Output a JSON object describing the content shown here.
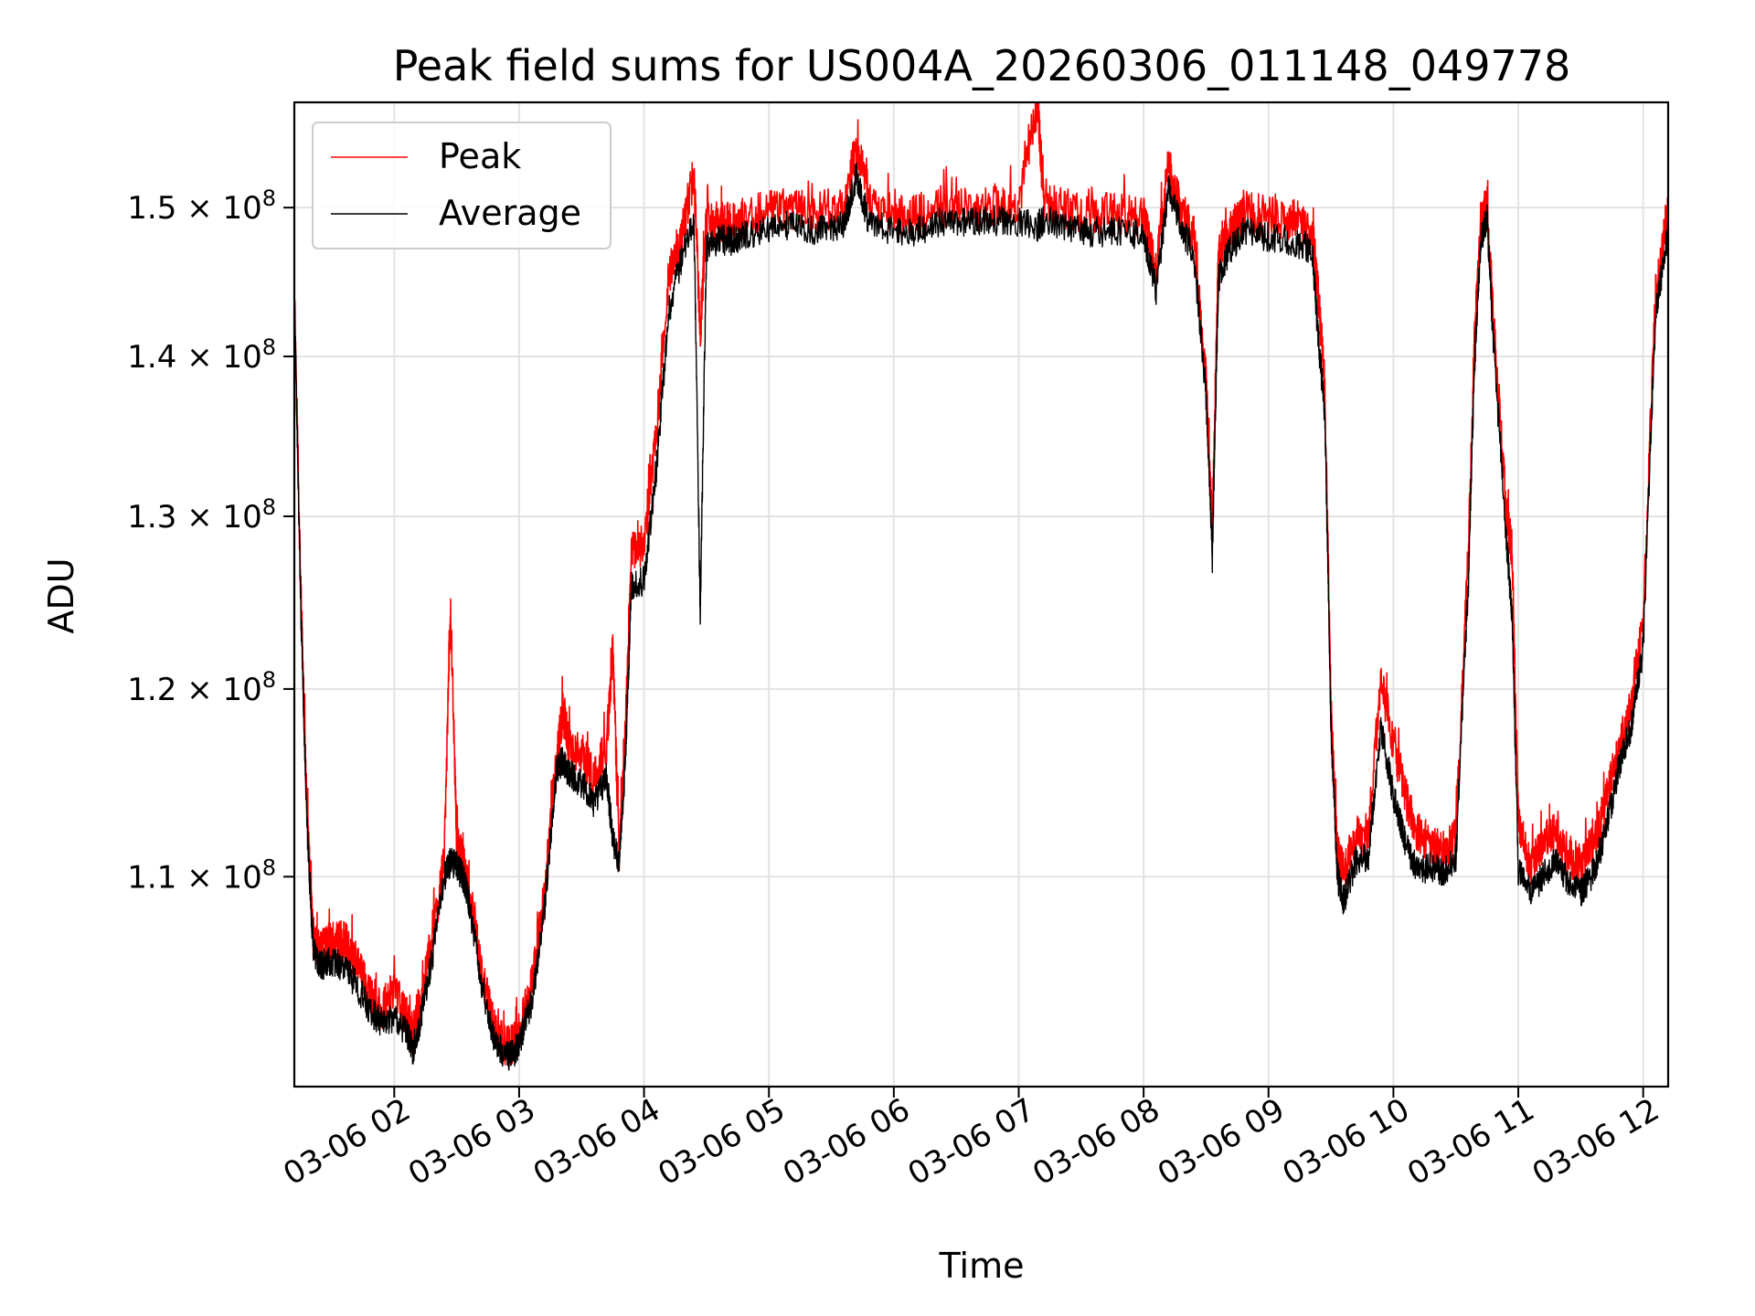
{
  "chart_data": {
    "type": "line",
    "title": "Peak field sums for US004A_20260306_011148_049778",
    "xlabel": "Time",
    "ylabel": "ADU",
    "x_unit": "hour of 2026-03-06",
    "xlim": [
      1.2,
      12.2
    ],
    "ylim": [
      99800000,
      157500000
    ],
    "y_scale": "log",
    "grid": true,
    "legend_position": "top-left",
    "x_ticks": [
      {
        "value": 2,
        "label": "03-06 02"
      },
      {
        "value": 3,
        "label": "03-06 03"
      },
      {
        "value": 4,
        "label": "03-06 04"
      },
      {
        "value": 5,
        "label": "03-06 05"
      },
      {
        "value": 6,
        "label": "03-06 06"
      },
      {
        "value": 7,
        "label": "03-06 07"
      },
      {
        "value": 8,
        "label": "03-06 08"
      },
      {
        "value": 9,
        "label": "03-06 09"
      },
      {
        "value": 10,
        "label": "03-06 10"
      },
      {
        "value": 11,
        "label": "03-06 11"
      },
      {
        "value": 12,
        "label": "03-06 12"
      }
    ],
    "y_ticks": [
      {
        "value": 110000000,
        "mantissa": "1.1",
        "exponent": "8"
      },
      {
        "value": 120000000,
        "mantissa": "1.2",
        "exponent": "8"
      },
      {
        "value": 130000000,
        "mantissa": "1.3",
        "exponent": "8"
      },
      {
        "value": 140000000,
        "mantissa": "1.4",
        "exponent": "8"
      },
      {
        "value": 150000000,
        "mantissa": "1.5",
        "exponent": "8"
      }
    ],
    "series": [
      {
        "name": "Peak",
        "color": "#ff0000",
        "x": [
          1.2,
          1.25,
          1.3,
          1.35,
          1.4,
          1.45,
          1.5,
          1.6,
          1.7,
          1.8,
          1.9,
          2.0,
          2.1,
          2.15,
          2.2,
          2.3,
          2.4,
          2.45,
          2.5,
          2.55,
          2.6,
          2.7,
          2.8,
          2.9,
          2.95,
          3.0,
          3.1,
          3.2,
          3.3,
          3.35,
          3.4,
          3.5,
          3.6,
          3.7,
          3.75,
          3.8,
          3.85,
          3.9,
          4.0,
          4.1,
          4.2,
          4.3,
          4.4,
          4.45,
          4.5,
          4.6,
          4.7,
          4.8,
          5.0,
          5.2,
          5.4,
          5.6,
          5.7,
          5.8,
          6.0,
          6.2,
          6.4,
          6.6,
          6.8,
          7.0,
          7.15,
          7.2,
          7.4,
          7.6,
          7.8,
          8.0,
          8.1,
          8.2,
          8.3,
          8.4,
          8.5,
          8.55,
          8.6,
          8.7,
          8.8,
          9.0,
          9.2,
          9.35,
          9.4,
          9.45,
          9.5,
          9.55,
          9.6,
          9.7,
          9.8,
          9.9,
          10.0,
          10.1,
          10.2,
          10.3,
          10.4,
          10.5,
          10.6,
          10.65,
          10.7,
          10.75,
          10.8,
          10.9,
          10.95,
          11.0,
          11.1,
          11.2,
          11.3,
          11.4,
          11.5,
          11.6,
          11.7,
          11.8,
          11.9,
          12.0,
          12.1,
          12.2
        ],
        "y": [
          144500000,
          126000000,
          113500000,
          107000000,
          106200000,
          106500000,
          106700000,
          106800000,
          105800000,
          104200000,
          103500000,
          104300000,
          103000000,
          102200000,
          103400000,
          106800000,
          110700000,
          124500000,
          111800000,
          110800000,
          109300000,
          105300000,
          102500000,
          101700000,
          101800000,
          102300000,
          104500000,
          108900000,
          116200000,
          118800000,
          116800000,
          116500000,
          115000000,
          116900000,
          122100000,
          111200000,
          117500000,
          128100000,
          128000000,
          135200000,
          145500000,
          148100000,
          152300000,
          141600000,
          149300000,
          149100000,
          148800000,
          149300000,
          149900000,
          150000000,
          149800000,
          150200000,
          154400000,
          150700000,
          149300000,
          149500000,
          150200000,
          149900000,
          150000000,
          150100000,
          157500000,
          150300000,
          149800000,
          149500000,
          149600000,
          149300000,
          145700000,
          153000000,
          149800000,
          148200000,
          138500000,
          129000000,
          146800000,
          148600000,
          149800000,
          149300000,
          149200000,
          148400000,
          144000000,
          138000000,
          118800000,
          111200000,
          110200000,
          112000000,
          112200000,
          120500000,
          117000000,
          114100000,
          112200000,
          111600000,
          111300000,
          111900000,
          127800000,
          141200000,
          149100000,
          150200000,
          142500000,
          130600000,
          127800000,
          113000000,
          110300000,
          111800000,
          112300000,
          111100000,
          110600000,
          111600000,
          113700000,
          116700000,
          119000000,
          123500000,
          144100000,
          149500000
        ]
      },
      {
        "name": "Average",
        "color": "#000000",
        "x": [
          1.2,
          1.25,
          1.3,
          1.35,
          1.4,
          1.45,
          1.5,
          1.6,
          1.7,
          1.8,
          1.9,
          2.0,
          2.1,
          2.15,
          2.2,
          2.3,
          2.4,
          2.45,
          2.5,
          2.55,
          2.6,
          2.7,
          2.8,
          2.9,
          2.95,
          3.0,
          3.1,
          3.2,
          3.3,
          3.35,
          3.4,
          3.5,
          3.6,
          3.7,
          3.75,
          3.8,
          3.85,
          3.9,
          4.0,
          4.1,
          4.2,
          4.3,
          4.4,
          4.45,
          4.5,
          4.6,
          4.7,
          4.8,
          5.0,
          5.2,
          5.4,
          5.6,
          5.7,
          5.8,
          6.0,
          6.2,
          6.4,
          6.6,
          6.8,
          7.0,
          7.15,
          7.2,
          7.4,
          7.6,
          7.8,
          8.0,
          8.1,
          8.2,
          8.3,
          8.4,
          8.5,
          8.55,
          8.6,
          8.7,
          8.8,
          9.0,
          9.2,
          9.35,
          9.4,
          9.45,
          9.5,
          9.55,
          9.6,
          9.7,
          9.8,
          9.9,
          10.0,
          10.1,
          10.2,
          10.3,
          10.4,
          10.5,
          10.6,
          10.65,
          10.7,
          10.75,
          10.8,
          10.9,
          10.95,
          11.0,
          11.1,
          11.2,
          11.3,
          11.4,
          11.5,
          11.6,
          11.7,
          11.8,
          11.9,
          12.0,
          12.1,
          12.2
        ],
        "y": [
          143800000,
          125000000,
          112800000,
          106500000,
          105500000,
          105700000,
          105800000,
          105500000,
          104600000,
          103400000,
          102800000,
          103100000,
          102300000,
          101500000,
          102700000,
          105800000,
          110000000,
          110800000,
          110500000,
          110000000,
          108700000,
          104700000,
          102000000,
          101200000,
          101300000,
          101800000,
          103800000,
          108200000,
          115600000,
          116100000,
          115400000,
          114900000,
          113800000,
          115200000,
          112000000,
          110500000,
          116000000,
          125800000,
          126200000,
          133000000,
          143000000,
          146500000,
          149000000,
          124000000,
          147200000,
          147800000,
          147700000,
          148100000,
          148500000,
          148800000,
          148400000,
          148800000,
          152300000,
          149000000,
          148300000,
          148400000,
          149100000,
          149000000,
          149100000,
          149000000,
          148700000,
          149200000,
          148500000,
          148300000,
          148400000,
          148100000,
          144300000,
          151500000,
          148600000,
          147000000,
          137500000,
          127500000,
          145200000,
          147200000,
          148400000,
          148000000,
          147700000,
          147100000,
          141000000,
          136500000,
          118000000,
          110100000,
          108700000,
          110800000,
          111100000,
          117800000,
          114200000,
          111600000,
          110200000,
          110500000,
          110300000,
          110900000,
          126000000,
          139600000,
          147700000,
          149300000,
          141000000,
          129000000,
          124200000,
          110300000,
          109100000,
          110100000,
          110900000,
          109800000,
          109200000,
          110200000,
          112300000,
          115600000,
          117800000,
          122300000,
          142800000,
          148400000
        ]
      }
    ]
  }
}
